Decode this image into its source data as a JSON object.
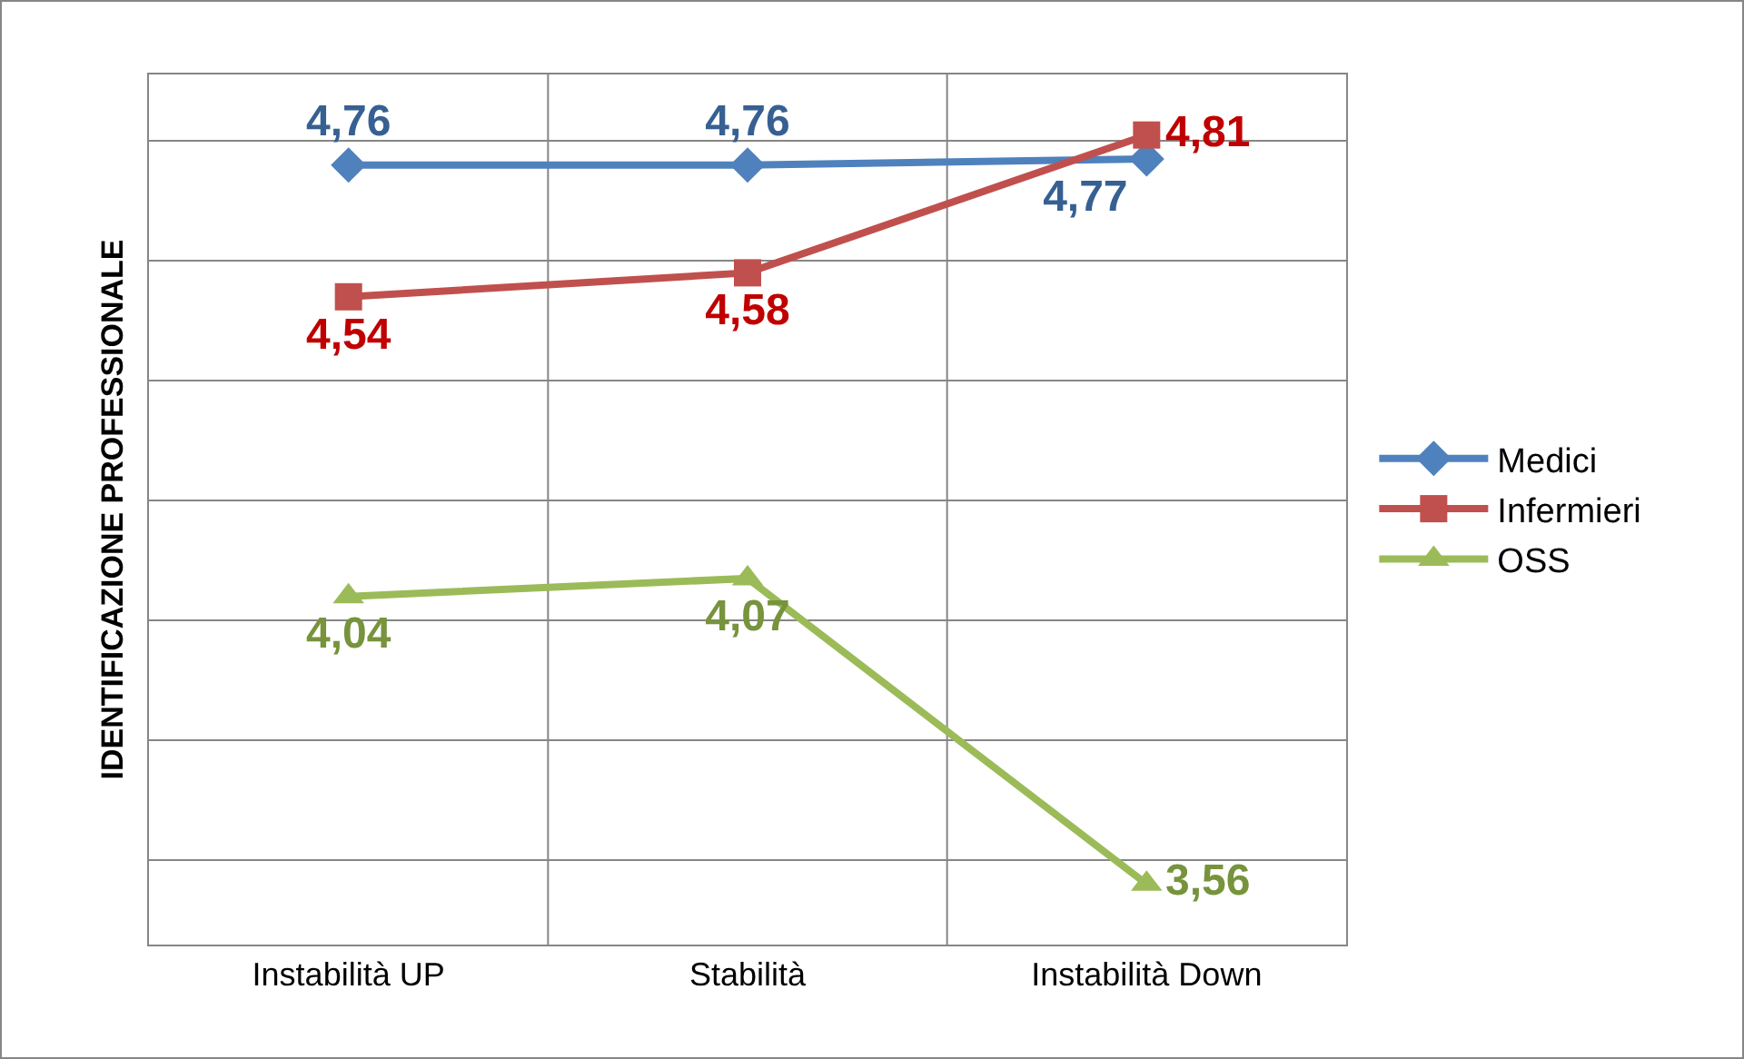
{
  "chart_data": {
    "type": "line",
    "ylabel": "IDENTIFICAZIONE PROFESSIONALE",
    "categories": [
      "Instabilità UP",
      "Stabilità",
      "Instabilità Down"
    ],
    "series": [
      {
        "name": "Medici",
        "color": "#4f81bd",
        "marker": "diamond",
        "values": [
          4.76,
          4.76,
          4.77
        ],
        "value_labels": [
          "4,76",
          "4,76",
          "4,77"
        ]
      },
      {
        "name": "Infermieri",
        "color": "#c0504d",
        "marker": "square",
        "values": [
          4.54,
          4.58,
          4.81
        ],
        "value_labels": [
          "4,54",
          "4,58",
          "4,81"
        ]
      },
      {
        "name": "OSS",
        "color": "#9bbb59",
        "marker": "triangle",
        "values": [
          4.04,
          4.07,
          3.56
        ],
        "value_labels": [
          "4,04",
          "4,07",
          "3,56"
        ]
      }
    ],
    "tick_labels": "x",
    "grid": true,
    "legend": "right"
  }
}
